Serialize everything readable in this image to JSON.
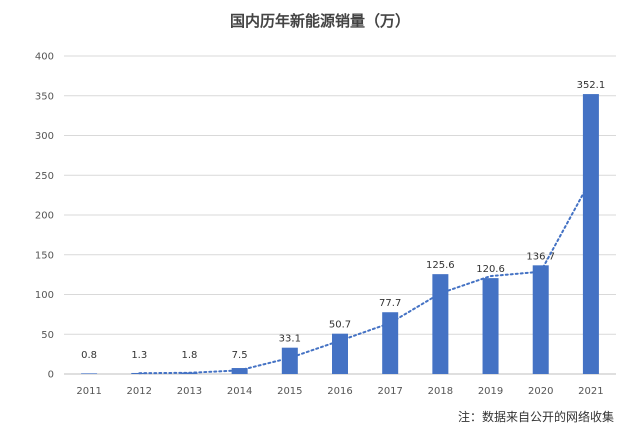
{
  "chart_data": {
    "type": "bar",
    "title": "国内历年新能源销量（万）",
    "xlabel": "",
    "ylabel": "",
    "categories": [
      "2011",
      "2012",
      "2013",
      "2014",
      "2015",
      "2016",
      "2017",
      "2018",
      "2019",
      "2020",
      "2021"
    ],
    "values": [
      0.8,
      1.3,
      1.8,
      7.5,
      33.1,
      50.7,
      77.7,
      125.6,
      120.6,
      136.7,
      352.1
    ],
    "data_labels": [
      "0.8",
      "1.3",
      "1.8",
      "7.5",
      "33.1",
      "50.7",
      "77.7",
      "125.6",
      "120.6",
      "136.7",
      "352.1"
    ],
    "ylim": [
      0,
      400
    ],
    "yticks": [
      0,
      50,
      100,
      150,
      200,
      250,
      300,
      350,
      400
    ],
    "grid": true,
    "bar_color": "#4472C4",
    "trendline": {
      "type": "moving-average",
      "period": 2,
      "style": "dotted",
      "color": "#4472C4"
    },
    "note": "注：数据来自公开的网络收集"
  }
}
